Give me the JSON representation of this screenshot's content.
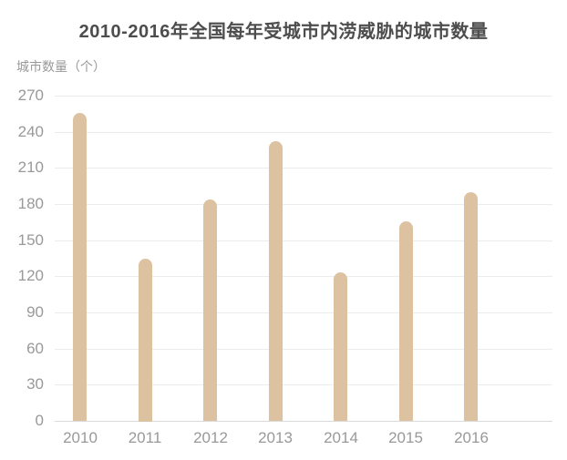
{
  "chart_data": {
    "type": "bar",
    "title": "2010-2016年全国每年受城市内涝威胁的城市数量",
    "ylabel": "城市数量（个）",
    "xlabel": "",
    "categories": [
      "2010",
      "2011",
      "2012",
      "2013",
      "2014",
      "2015",
      "2016"
    ],
    "values": [
      256,
      135,
      184,
      232,
      123,
      166,
      190
    ],
    "ylim": [
      0,
      270
    ],
    "ytick_step": 30,
    "yticks": [
      0,
      30,
      60,
      90,
      120,
      150,
      180,
      210,
      240,
      270
    ],
    "grid": true,
    "legend": null,
    "colors": {
      "bar": "#ddc2a2",
      "gridline": "#ececec",
      "axis_baseline": "#d9d9d9",
      "tick_text": "#999999",
      "title_text": "#4d4d4d",
      "background": "#ffffff"
    }
  }
}
